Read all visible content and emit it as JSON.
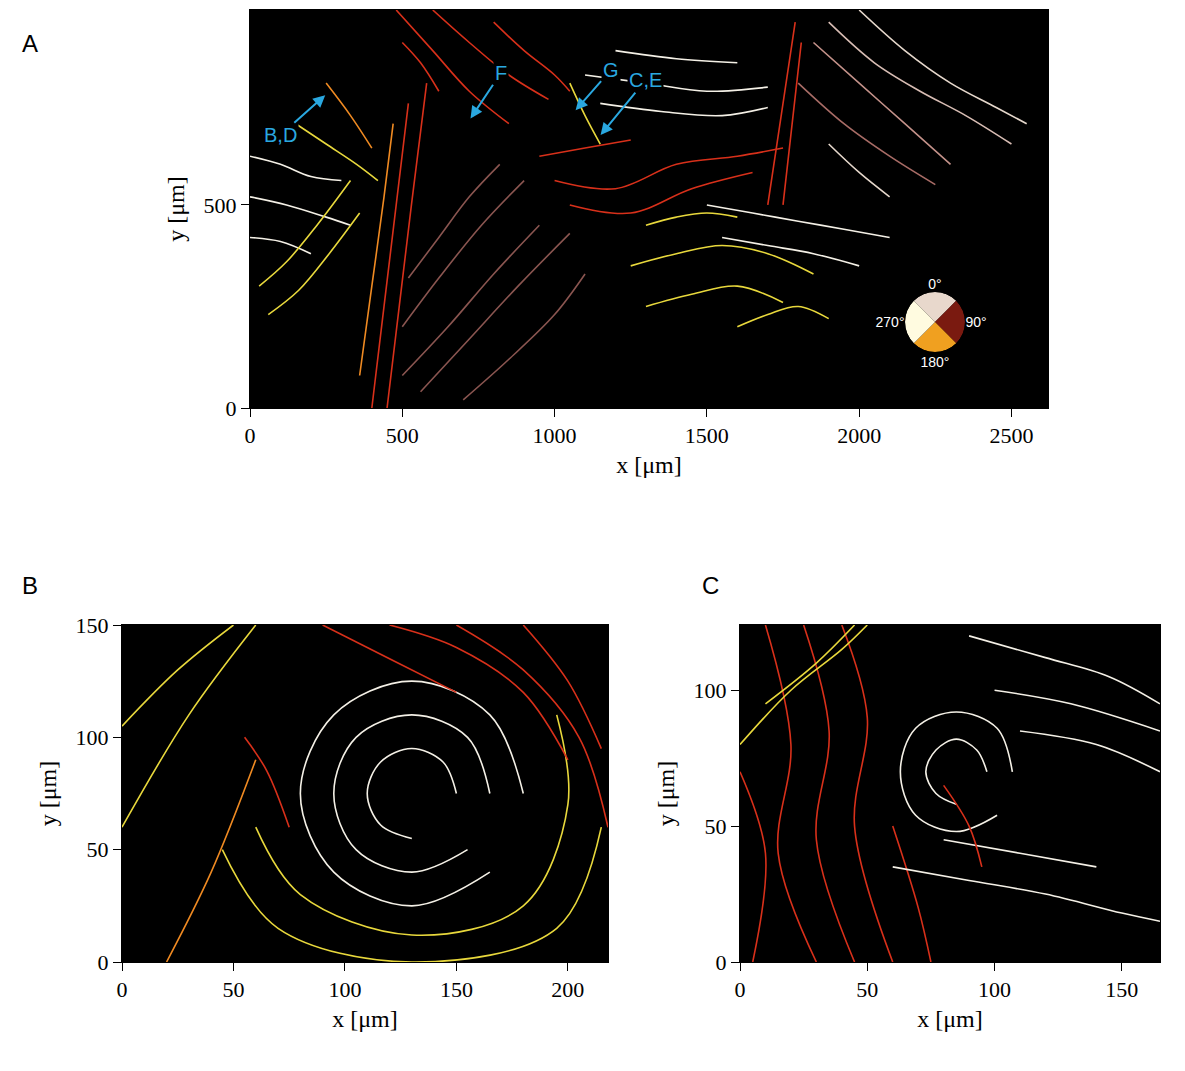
{
  "chart_data": [
    {
      "type": "line",
      "title": "A",
      "x_label": "x [μm]",
      "y_label": "y [μm]",
      "xlim": [
        0,
        2620
      ],
      "ylim": [
        0,
        980
      ],
      "xticks": [
        0,
        500,
        1000,
        1500,
        2000,
        2500
      ],
      "yticks": [
        0,
        500
      ],
      "annotations": [
        {
          "text": "B,D",
          "x": 247,
          "y": 770
        },
        {
          "text": "F",
          "x": 724,
          "y": 713
        },
        {
          "text": "G",
          "x": 1069,
          "y": 733
        },
        {
          "text": "C,E",
          "x": 1151,
          "y": 672
        }
      ],
      "color_wheel": {
        "ticks": [
          {
            "value": 0,
            "label": "0°"
          },
          {
            "value": 90,
            "label": "90°"
          },
          {
            "value": 180,
            "label": "180°"
          },
          {
            "value": 270,
            "label": "270°"
          }
        ],
        "colors": [
          "#e8d8cc",
          "#7a1a10",
          "#f0a020",
          "#fffbe0"
        ]
      },
      "series": [
        {
          "color": "#f4f0e6",
          "x": [
            0,
            100,
            200,
            300
          ],
          "values": [
            620,
            600,
            570,
            560
          ]
        },
        {
          "color": "#f4f0e6",
          "x": [
            0,
            120,
            250,
            330
          ],
          "values": [
            520,
            500,
            470,
            450
          ]
        },
        {
          "color": "#f4f0e6",
          "x": [
            0,
            100,
            200
          ],
          "values": [
            420,
            410,
            380
          ]
        },
        {
          "color": "#e8d83c",
          "x": [
            30,
            120,
            220,
            330
          ],
          "values": [
            300,
            360,
            450,
            560
          ]
        },
        {
          "color": "#e8d83c",
          "x": [
            60,
            160,
            260,
            360
          ],
          "values": [
            230,
            290,
            380,
            480
          ]
        },
        {
          "color": "#e8d83c",
          "x": [
            150,
            250,
            350,
            420
          ],
          "values": [
            700,
            650,
            600,
            560
          ]
        },
        {
          "color": "#ef8a22",
          "x": [
            250,
            330,
            400
          ],
          "values": [
            800,
            720,
            640
          ]
        },
        {
          "color": "#d8301a",
          "x": [
            400,
            440,
            480,
            520
          ],
          "values": [
            0,
            250,
            500,
            750
          ]
        },
        {
          "color": "#d8301a",
          "x": [
            450,
            490,
            530,
            580
          ],
          "values": [
            0,
            250,
            500,
            800
          ]
        },
        {
          "color": "#ef8a22",
          "x": [
            360,
            400,
            440,
            470
          ],
          "values": [
            80,
            300,
            520,
            700
          ]
        },
        {
          "color": "#d8301a",
          "x": [
            480,
            600,
            720,
            850
          ],
          "values": [
            980,
            880,
            780,
            700
          ]
        },
        {
          "color": "#d8301a",
          "x": [
            600,
            720,
            850,
            980
          ],
          "values": [
            980,
            900,
            820,
            760
          ]
        },
        {
          "color": "#d8301a",
          "x": [
            800,
            900,
            1000,
            1050
          ],
          "values": [
            950,
            880,
            820,
            780
          ]
        },
        {
          "color": "#d8301a",
          "x": [
            500,
            560,
            620
          ],
          "values": [
            900,
            850,
            780
          ]
        },
        {
          "color": "#8a5550",
          "x": [
            500,
            650,
            800,
            950
          ],
          "values": [
            80,
            200,
            330,
            450
          ]
        },
        {
          "color": "#8a5550",
          "x": [
            560,
            720,
            880,
            1050
          ],
          "values": [
            40,
            170,
            300,
            430
          ]
        },
        {
          "color": "#8a5550",
          "x": [
            500,
            620,
            760,
            900
          ],
          "values": [
            200,
            320,
            450,
            560
          ]
        },
        {
          "color": "#8a5550",
          "x": [
            520,
            620,
            720,
            820
          ],
          "values": [
            320,
            420,
            520,
            600
          ]
        },
        {
          "color": "#8a5550",
          "x": [
            700,
            850,
            1000,
            1100
          ],
          "values": [
            20,
            120,
            230,
            330
          ]
        },
        {
          "color": "#d8301a",
          "x": [
            1000,
            1200,
            1400,
            1600,
            1750
          ],
          "values": [
            560,
            540,
            600,
            620,
            640
          ]
        },
        {
          "color": "#d8301a",
          "x": [
            1050,
            1250,
            1450,
            1650
          ],
          "values": [
            500,
            480,
            540,
            580
          ]
        },
        {
          "color": "#d8301a",
          "x": [
            950,
            1100,
            1250
          ],
          "values": [
            620,
            640,
            660
          ]
        },
        {
          "color": "#f4f0e6",
          "x": [
            1100,
            1300,
            1500,
            1700
          ],
          "values": [
            820,
            800,
            780,
            790
          ]
        },
        {
          "color": "#f4f0e6",
          "x": [
            1150,
            1350,
            1550,
            1700
          ],
          "values": [
            750,
            730,
            720,
            740
          ]
        },
        {
          "color": "#f4f0e6",
          "x": [
            1200,
            1400,
            1600
          ],
          "values": [
            880,
            860,
            850
          ]
        },
        {
          "color": "#e8d83c",
          "x": [
            1050,
            1100,
            1150
          ],
          "values": [
            800,
            720,
            650
          ]
        },
        {
          "color": "#e8d83c",
          "x": [
            1250,
            1400,
            1550,
            1700,
            1850
          ],
          "values": [
            350,
            380,
            400,
            380,
            330
          ]
        },
        {
          "color": "#e8d83c",
          "x": [
            1300,
            1450,
            1600,
            1750
          ],
          "values": [
            250,
            280,
            300,
            260
          ]
        },
        {
          "color": "#e8d83c",
          "x": [
            1300,
            1400,
            1500,
            1600
          ],
          "values": [
            450,
            470,
            480,
            470
          ]
        },
        {
          "color": "#e8d83c",
          "x": [
            1600,
            1700,
            1800,
            1900
          ],
          "values": [
            200,
            230,
            250,
            220
          ]
        },
        {
          "color": "#f4f0e6",
          "x": [
            1500,
            1650,
            1800,
            1950,
            2100
          ],
          "values": [
            500,
            480,
            460,
            440,
            420
          ]
        },
        {
          "color": "#f4f0e6",
          "x": [
            1550,
            1700,
            1850,
            2000
          ],
          "values": [
            420,
            400,
            380,
            350
          ]
        },
        {
          "color": "#d8301a",
          "x": [
            1700,
            1730,
            1760,
            1790
          ],
          "values": [
            500,
            650,
            800,
            950
          ]
        },
        {
          "color": "#d8301a",
          "x": [
            1750,
            1780,
            1810
          ],
          "values": [
            500,
            700,
            900
          ]
        },
        {
          "color": "#c4928a",
          "x": [
            1850,
            2000,
            2150,
            2300
          ],
          "values": [
            900,
            800,
            700,
            600
          ]
        },
        {
          "color": "#d8bdb4",
          "x": [
            1900,
            2050,
            2200,
            2350,
            2500
          ],
          "values": [
            950,
            850,
            780,
            720,
            650
          ]
        },
        {
          "color": "#a86c66",
          "x": [
            1800,
            1950,
            2100,
            2250
          ],
          "values": [
            800,
            700,
            620,
            550
          ]
        },
        {
          "color": "#e6d8cc",
          "x": [
            2000,
            2150,
            2300,
            2450,
            2550
          ],
          "values": [
            980,
            880,
            800,
            740,
            700
          ]
        },
        {
          "color": "#e6d8cc",
          "x": [
            1900,
            2000,
            2100
          ],
          "values": [
            650,
            580,
            520
          ]
        }
      ]
    },
    {
      "type": "line",
      "title": "B",
      "x_label": "x [μm]",
      "y_label": "y [μm]",
      "xlim": [
        0,
        218
      ],
      "ylim": [
        0,
        150
      ],
      "xticks": [
        0,
        50,
        100,
        150,
        200
      ],
      "yticks": [
        0,
        50,
        100,
        150
      ],
      "series": [
        {
          "color": "#f4f0e6",
          "x": [
            150,
            144,
            130,
            116,
            110,
            116,
            130
          ],
          "values": [
            75,
            89,
            95,
            89,
            75,
            61,
            55
          ]
        },
        {
          "color": "#f4f0e6",
          "x": [
            165,
            155,
            130,
            105,
            95,
            105,
            130,
            155
          ],
          "values": [
            75,
            100,
            110,
            100,
            75,
            50,
            40,
            50
          ]
        },
        {
          "color": "#f4f0e6",
          "x": [
            180,
            165,
            130,
            95,
            80,
            95,
            130,
            165
          ],
          "values": [
            75,
            110,
            125,
            110,
            75,
            40,
            25,
            40
          ]
        },
        {
          "color": "#e8d83c",
          "x": [
            60,
            80,
            130,
            180,
            200,
            195
          ],
          "values": [
            60,
            30,
            12,
            25,
            70,
            110
          ]
        },
        {
          "color": "#e8d83c",
          "x": [
            45,
            70,
            130,
            195,
            215
          ],
          "values": [
            50,
            15,
            0,
            15,
            60
          ]
        },
        {
          "color": "#e8d83c",
          "x": [
            0,
            25,
            50
          ],
          "values": [
            105,
            130,
            150
          ]
        },
        {
          "color": "#e8d83c",
          "x": [
            0,
            30,
            60
          ],
          "values": [
            60,
            110,
            150
          ]
        },
        {
          "color": "#ef8a22",
          "x": [
            20,
            40,
            60
          ],
          "values": [
            0,
            40,
            90
          ]
        },
        {
          "color": "#d8301a",
          "x": [
            120,
            150,
            180,
            200
          ],
          "values": [
            150,
            140,
            120,
            90
          ]
        },
        {
          "color": "#d8301a",
          "x": [
            150,
            180,
            205,
            218
          ],
          "values": [
            150,
            130,
            100,
            60
          ]
        },
        {
          "color": "#d8301a",
          "x": [
            90,
            120,
            150
          ],
          "values": [
            150,
            135,
            120
          ]
        },
        {
          "color": "#d8301a",
          "x": [
            180,
            200,
            215
          ],
          "values": [
            150,
            125,
            95
          ]
        },
        {
          "color": "#d8301a",
          "x": [
            55,
            65,
            75
          ],
          "values": [
            100,
            85,
            60
          ]
        }
      ]
    },
    {
      "type": "line",
      "title": "C",
      "x_label": "x [μm]",
      "y_label": "y [μm]",
      "xlim": [
        0,
        165
      ],
      "ylim": [
        0,
        124
      ],
      "xticks": [
        0,
        50,
        100,
        150
      ],
      "yticks": [
        0,
        50,
        100
      ],
      "series": [
        {
          "color": "#d8301a",
          "x": [
            10,
            20,
            15,
            30
          ],
          "values": [
            124,
            80,
            40,
            0
          ]
        },
        {
          "color": "#d8301a",
          "x": [
            25,
            35,
            30,
            45
          ],
          "values": [
            124,
            85,
            45,
            0
          ]
        },
        {
          "color": "#d8301a",
          "x": [
            40,
            50,
            45,
            60
          ],
          "values": [
            124,
            90,
            50,
            0
          ]
        },
        {
          "color": "#d8301a",
          "x": [
            60,
            70,
            75
          ],
          "values": [
            50,
            20,
            0
          ]
        },
        {
          "color": "#d8301a",
          "x": [
            0,
            10,
            5
          ],
          "values": [
            70,
            40,
            0
          ]
        },
        {
          "color": "#e8d83c",
          "x": [
            0,
            20,
            40,
            50
          ],
          "values": [
            80,
            100,
            115,
            124
          ]
        },
        {
          "color": "#e8d83c",
          "x": [
            10,
            30,
            45
          ],
          "values": [
            95,
            110,
            124
          ]
        },
        {
          "color": "#f4f0e6",
          "x": [
            97,
            93,
            85,
            77,
            73,
            77,
            85
          ],
          "values": [
            70,
            78,
            82,
            78,
            70,
            62,
            58
          ]
        },
        {
          "color": "#f4f0e6",
          "x": [
            107,
            101,
            85,
            69,
            63,
            69,
            85,
            101
          ],
          "values": [
            70,
            86,
            92,
            86,
            70,
            54,
            48,
            54
          ]
        },
        {
          "color": "#f4f0e6",
          "x": [
            90,
            120,
            145,
            165
          ],
          "values": [
            120,
            112,
            105,
            95
          ]
        },
        {
          "color": "#f4f0e6",
          "x": [
            100,
            130,
            165
          ],
          "values": [
            100,
            95,
            85
          ]
        },
        {
          "color": "#f4f0e6",
          "x": [
            110,
            140,
            165
          ],
          "values": [
            85,
            80,
            70
          ]
        },
        {
          "color": "#f4f0e6",
          "x": [
            60,
            90,
            120,
            150,
            165
          ],
          "values": [
            35,
            30,
            25,
            18,
            15
          ]
        },
        {
          "color": "#f4f0e6",
          "x": [
            80,
            110,
            140
          ],
          "values": [
            45,
            40,
            35
          ]
        },
        {
          "color": "#d8301a",
          "x": [
            80,
            90,
            95
          ],
          "values": [
            65,
            50,
            35
          ]
        }
      ]
    }
  ]
}
